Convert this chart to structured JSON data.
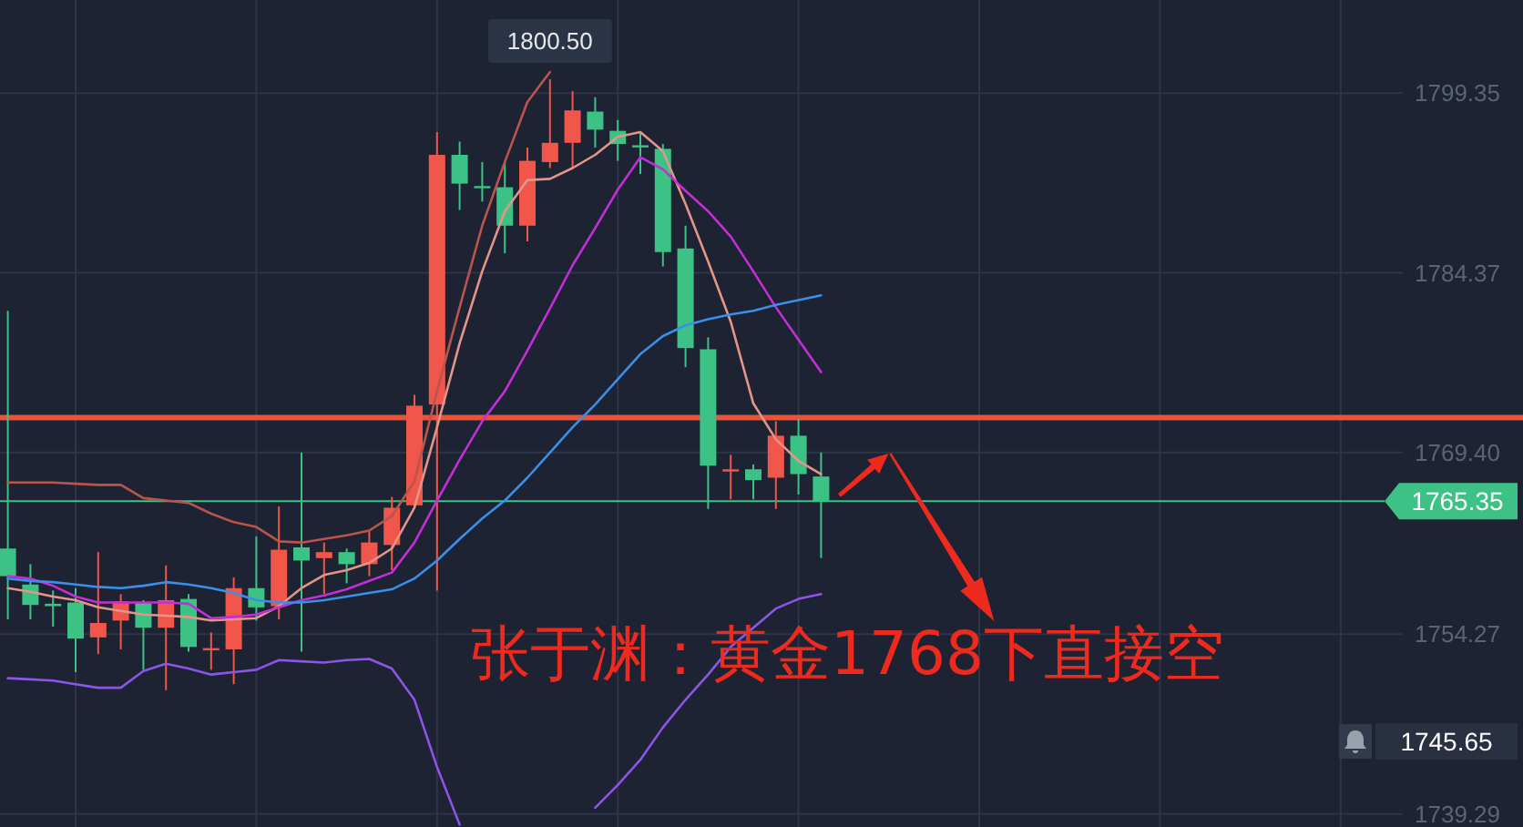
{
  "chart_data": {
    "type": "candlestick",
    "categories": [
      null,
      null,
      null,
      null,
      null,
      null,
      null,
      null,
      null,
      null,
      null,
      null,
      null,
      null,
      null,
      null,
      null,
      null,
      null,
      null,
      null,
      null,
      null,
      null,
      null,
      null,
      null,
      null,
      null,
      null,
      null,
      null,
      null,
      null,
      null,
      null,
      null
    ],
    "ohlc": [
      [
        1761.4,
        1781.2,
        1755.5,
        1759.1
      ],
      [
        1758.4,
        1760.1,
        1755.5,
        1756.7
      ],
      [
        1756.8,
        1757.9,
        1754.9,
        1756.6
      ],
      [
        1756.9,
        1758.1,
        1751.1,
        1753.9
      ],
      [
        1754.0,
        1761.1,
        1752.6,
        1755.2
      ],
      [
        1755.4,
        1757.6,
        1753.0,
        1757.0
      ],
      [
        1756.9,
        1757.1,
        1751.3,
        1754.8
      ],
      [
        1754.8,
        1760.0,
        1749.6,
        1757.1
      ],
      [
        1757.2,
        1757.6,
        1752.8,
        1753.2
      ],
      [
        1753.0,
        1754.4,
        1751.3,
        1753.1
      ],
      [
        1753.0,
        1759.0,
        1750.1,
        1758.1
      ],
      [
        1758.1,
        1762.4,
        1755.4,
        1756.5
      ],
      [
        1756.6,
        1764.9,
        1755.5,
        1761.3
      ],
      [
        1761.5,
        1769.4,
        1752.8,
        1760.4
      ],
      [
        1760.6,
        1761.9,
        1757.6,
        1761.1
      ],
      [
        1761.1,
        1761.4,
        1758.5,
        1760.1
      ],
      [
        1760.1,
        1762.9,
        1759.1,
        1761.9
      ],
      [
        1761.7,
        1765.7,
        1759.6,
        1764.8
      ],
      [
        1765.0,
        1774.2,
        1764.8,
        1773.3
      ],
      [
        1773.4,
        1796.1,
        1757.9,
        1794.2
      ],
      [
        1794.2,
        1795.3,
        1789.6,
        1791.8
      ],
      [
        1791.6,
        1793.6,
        1790.3,
        1791.5
      ],
      [
        1791.5,
        1793.6,
        1786.0,
        1788.3
      ],
      [
        1788.3,
        1794.8,
        1787.0,
        1793.7
      ],
      [
        1793.6,
        1800.5,
        1793.1,
        1795.2
      ],
      [
        1795.2,
        1799.5,
        1793.1,
        1797.9
      ],
      [
        1797.8,
        1799.0,
        1794.8,
        1796.3
      ],
      [
        1796.2,
        1797.1,
        1793.7,
        1795.1
      ],
      [
        1795.0,
        1796.1,
        1792.6,
        1794.9
      ],
      [
        1794.7,
        1795.1,
        1784.9,
        1786.1
      ],
      [
        1786.4,
        1788.3,
        1776.5,
        1778.1
      ],
      [
        1778.0,
        1779.0,
        1764.7,
        1768.3
      ],
      [
        1767.9,
        1769.2,
        1765.5,
        1768.0
      ],
      [
        1768.0,
        1768.4,
        1765.5,
        1767.1
      ],
      [
        1767.3,
        1772.0,
        1764.7,
        1770.8
      ],
      [
        1770.8,
        1772.2,
        1765.9,
        1767.6
      ],
      [
        1767.4,
        1769.4,
        1760.6,
        1765.35
      ]
    ],
    "colors": [
      "#3cc285",
      "#3cc285",
      "#3cc285",
      "#3cc285",
      "#f0574a",
      "#f0574a",
      "#3cc285",
      "#f0574a",
      "#3cc285",
      "#f0574a",
      "#f0574a",
      "#3cc285",
      "#f0574a",
      "#3cc285",
      "#f0574a",
      "#3cc285",
      "#f0574a",
      "#f0574a",
      "#f0574a",
      "#f0574a",
      "#3cc285",
      "#3cc285",
      "#3cc285",
      "#f0574a",
      "#f0574a",
      "#f0574a",
      "#3cc285",
      "#3cc285",
      "#3cc285",
      "#3cc285",
      "#3cc285",
      "#3cc285",
      "#f0574a",
      "#3cc285",
      "#f0574a",
      "#3cc285",
      "#3cc285"
    ],
    "series": [
      {
        "type": "line",
        "color": "#b9554a",
        "values": [
          1766.9,
          1766.9,
          1766.9,
          1766.8,
          1766.7,
          1766.7,
          1765.6,
          1765.4,
          1765.2,
          1764.3,
          1763.6,
          1763.2,
          1762.0,
          1761.9,
          1762.2,
          1762.5,
          1762.9,
          1764.1,
          1767.0,
          1774.5,
          1781.5,
          1788.3,
          1793.6,
          1798.6,
          1801.1,
          null,
          null,
          null,
          null,
          null,
          null,
          null,
          null,
          null,
          null,
          null,
          null
        ]
      },
      {
        "type": "line",
        "color": "#e3958a",
        "values": [
          1758.1,
          1757.8,
          1757.4,
          1757.1,
          1756.5,
          1756.2,
          1755.9,
          1755.8,
          1755.7,
          1755.4,
          1755.5,
          1755.6,
          1756.6,
          1758.1,
          1759.2,
          1759.6,
          1760.2,
          1761.4,
          1764.8,
          1771.5,
          1778.5,
          1784.5,
          1789.5,
          1792.1,
          1792.2,
          1793.1,
          1794.2,
          1795.7,
          1796.1,
          1794.5,
          1790.1,
          1785.3,
          1780.3,
          1773.5,
          1770.5,
          1768.7,
          1767.6
        ]
      },
      {
        "type": "line",
        "color": "#c22fd6",
        "values": [
          1759.1,
          1758.9,
          1758.3,
          1757.4,
          1756.9,
          1756.9,
          1756.9,
          1756.9,
          1756.8,
          1755.6,
          1755.7,
          1755.9,
          1756.5,
          1757.1,
          1757.5,
          1758.0,
          1758.7,
          1759.4,
          1761.9,
          1765.4,
          1768.8,
          1772.0,
          1774.5,
          1777.9,
          1781.4,
          1785.0,
          1788.1,
          1791.3,
          1794.0,
          1793.0,
          1791.2,
          1789.5,
          1787.4,
          1784.5,
          1781.5,
          1778.8,
          1776.1
        ]
      },
      {
        "type": "line",
        "color": "#3a8fe8",
        "values": [
          1758.9,
          1758.7,
          1758.6,
          1758.4,
          1758.2,
          1758.1,
          1758.3,
          1758.6,
          1758.4,
          1758.1,
          1757.7,
          1757.1,
          1756.9,
          1756.9,
          1757.1,
          1757.4,
          1757.7,
          1758.0,
          1758.9,
          1760.4,
          1762.2,
          1763.9,
          1765.4,
          1767.3,
          1769.4,
          1771.5,
          1773.4,
          1775.5,
          1777.6,
          1779.1,
          1780.0,
          1780.5,
          1780.9,
          1781.2,
          1781.7,
          1782.1,
          1782.5
        ]
      },
      {
        "type": "line",
        "color": "#8b55e6",
        "values": [
          1750.6,
          1750.5,
          1750.4,
          1750.1,
          1749.8,
          1749.8,
          1751.2,
          1751.8,
          1751.4,
          1750.9,
          1751.1,
          1751.3,
          1752.1,
          1752.0,
          1751.9,
          1752.1,
          1752.2,
          1751.4,
          1748.8,
          1743.2,
          1738.4,
          null,
          null,
          null,
          null,
          null,
          1739.8,
          1741.7,
          1743.8,
          1746.5,
          1748.8,
          1750.9,
          1753.2,
          1754.8,
          1756.4,
          1757.2,
          1757.6
        ]
      }
    ],
    "ylim": [
      1738.2,
      1807.1
    ],
    "yticks": [
      1739.29,
      1754.27,
      {
        "value": 1769.4,
        "label": "1769.40"
      },
      1784.37,
      1799.35
    ],
    "tick_labels": "y",
    "grid": true,
    "ref_lines": [
      {
        "axis": "y",
        "value": 1772.3,
        "color": "#e4553b"
      },
      {
        "axis": "y",
        "value": 1765.35,
        "label": "1765.35",
        "color": "#3cc285"
      }
    ],
    "annotations": [
      "张于渊：黄金1768下直接空",
      {
        "text": "1800.50",
        "y": 1800.5
      },
      "1745.65"
    ]
  }
}
